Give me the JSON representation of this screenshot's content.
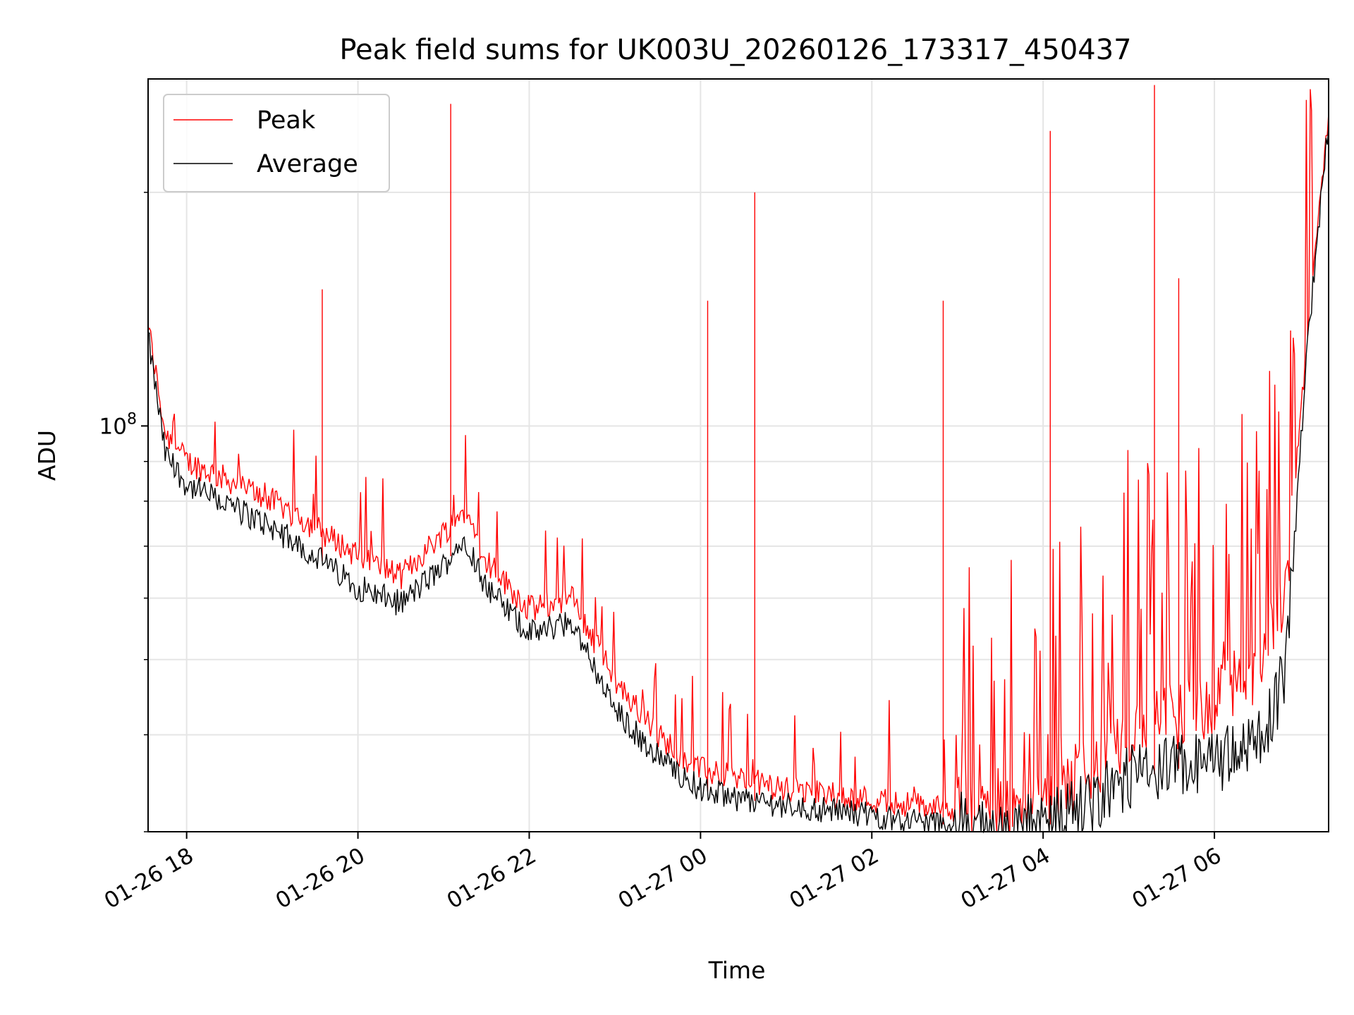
{
  "chart_data": {
    "type": "line",
    "title": "Peak field sums for UK003U_20260126_173317_450437",
    "xlabel": "Time",
    "ylabel": "ADU",
    "y_scale": "log",
    "xlim": [
      "2026-01-26 17:33",
      "2026-01-27 07:20"
    ],
    "ylim": [
      30000000,
      280000000
    ],
    "x_ticks": [
      "01-26 18",
      "01-26 20",
      "01-26 22",
      "01-27 00",
      "01-27 02",
      "01-27 04",
      "01-27 06"
    ],
    "y_ticks": [
      {
        "value": 100000000,
        "base": "10",
        "exp": "8"
      }
    ],
    "grid": true,
    "legend_position": "top-left",
    "colors": {
      "Peak": "#ff0000",
      "Average": "#000000"
    },
    "series": [
      {
        "name": "Peak",
        "x": [
          "2026-01-26 17:33",
          "2026-01-26 17:45",
          "2026-01-26 18:00",
          "2026-01-26 18:30",
          "2026-01-26 19:00",
          "2026-01-26 19:30",
          "2026-01-26 20:00",
          "2026-01-26 20:30",
          "2026-01-26 21:00",
          "2026-01-26 21:15",
          "2026-01-26 21:30",
          "2026-01-26 22:00",
          "2026-01-26 22:30",
          "2026-01-26 23:00",
          "2026-01-26 23:30",
          "2026-01-27 00:00",
          "2026-01-27 00:30",
          "2026-01-27 01:00",
          "2026-01-27 01:30",
          "2026-01-27 02:00",
          "2026-01-27 02:30",
          "2026-01-27 03:00",
          "2026-01-27 03:30",
          "2026-01-27 04:00",
          "2026-01-27 04:30",
          "2026-01-27 05:00",
          "2026-01-27 05:30",
          "2026-01-27 06:00",
          "2026-01-27 06:30",
          "2026-01-27 06:50",
          "2026-01-27 07:05",
          "2026-01-27 07:20"
        ],
        "y": [
          135000000,
          98000000,
          90000000,
          85000000,
          80000000,
          74000000,
          68000000,
          64000000,
          73000000,
          78000000,
          67000000,
          58000000,
          60000000,
          47000000,
          40000000,
          36000000,
          35000000,
          34000000,
          33500000,
          33000000,
          32500000,
          32000000,
          31500000,
          32000000,
          36000000,
          40000000,
          42000000,
          44000000,
          48000000,
          62000000,
          130000000,
          255000000
        ]
      },
      {
        "name": "Average",
        "x": [
          "2026-01-26 17:33",
          "2026-01-26 17:45",
          "2026-01-26 18:00",
          "2026-01-26 18:30",
          "2026-01-26 19:00",
          "2026-01-26 19:30",
          "2026-01-26 20:00",
          "2026-01-26 20:30",
          "2026-01-26 21:00",
          "2026-01-26 21:15",
          "2026-01-26 21:30",
          "2026-01-26 22:00",
          "2026-01-26 22:30",
          "2026-01-26 23:00",
          "2026-01-26 23:30",
          "2026-01-27 00:00",
          "2026-01-27 00:30",
          "2026-01-27 01:00",
          "2026-01-27 01:30",
          "2026-01-27 02:00",
          "2026-01-27 02:30",
          "2026-01-27 03:00",
          "2026-01-27 03:30",
          "2026-01-27 04:00",
          "2026-01-27 04:30",
          "2026-01-27 05:00",
          "2026-01-27 05:30",
          "2026-01-27 06:00",
          "2026-01-27 06:30",
          "2026-01-27 06:50",
          "2026-01-27 07:05",
          "2026-01-27 07:20"
        ],
        "y": [
          130000000,
          92000000,
          84000000,
          79000000,
          74000000,
          68000000,
          62000000,
          59000000,
          66000000,
          72000000,
          62000000,
          54000000,
          56000000,
          43000000,
          37500000,
          34000000,
          33000000,
          32500000,
          32000000,
          31500000,
          31000000,
          30500000,
          30200000,
          30300000,
          32500000,
          35000000,
          36000000,
          37000000,
          38500000,
          48000000,
          125000000,
          250000000
        ]
      }
    ],
    "spikes": [
      {
        "x": "2026-01-26 19:35",
        "y": 150000000
      },
      {
        "x": "2026-01-26 21:05",
        "y": 260000000
      },
      {
        "x": "2026-01-27 00:05",
        "y": 145000000
      },
      {
        "x": "2026-01-27 00:38",
        "y": 200000000
      },
      {
        "x": "2026-01-27 02:50",
        "y": 145000000
      },
      {
        "x": "2026-01-27 04:05",
        "y": 240000000
      },
      {
        "x": "2026-01-27 05:18",
        "y": 275000000
      },
      {
        "x": "2026-01-27 05:35",
        "y": 155000000
      }
    ]
  }
}
